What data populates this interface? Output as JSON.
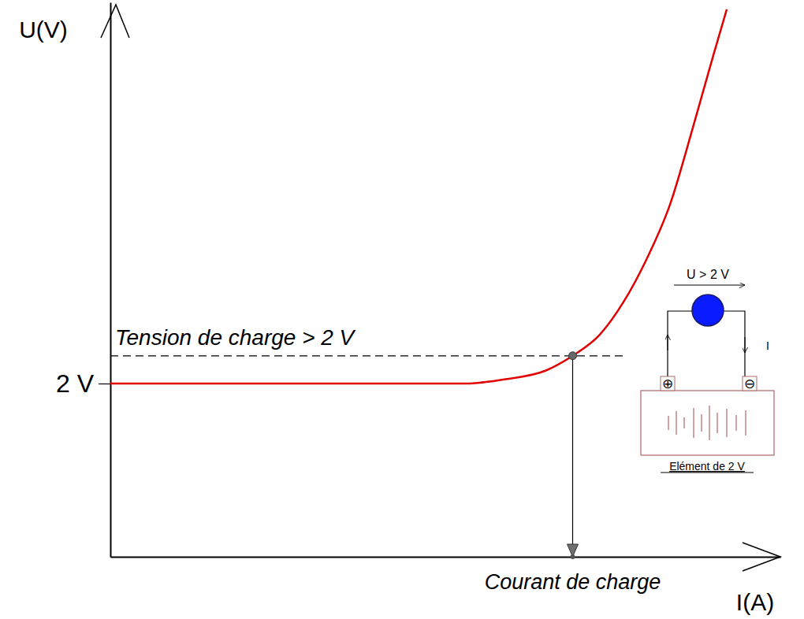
{
  "chart_data": {
    "type": "line",
    "x_label": "I(A)",
    "y_label": "U(V)",
    "x": [
      0,
      5.3,
      5.9,
      6.5,
      6.9,
      7.3,
      7.65,
      8.0,
      8.35,
      8.7,
      9.0,
      9.2
    ],
    "values": [
      2.0,
      2.0,
      2.05,
      2.15,
      2.32,
      2.56,
      2.93,
      3.43,
      4.06,
      4.97,
      5.79,
      6.32
    ],
    "color": "#e00000",
    "xlim": [
      0,
      10
    ],
    "ylim": [
      0,
      6.4
    ],
    "xticks": [],
    "yticks": [
      {
        "value": 2,
        "label": "2 V"
      }
    ],
    "tick_labels": "y",
    "grid": false,
    "operating_point": {
      "x": 6.9,
      "y": 2.32,
      "x_label": "Courant de charge",
      "y_label": "Tension de charge > 2 V"
    },
    "circuit": {
      "voltage_label": "U > 2 V",
      "current_label": "I",
      "plus": "⊕",
      "minus": "⊖",
      "caption": "Elément de 2 V"
    }
  }
}
